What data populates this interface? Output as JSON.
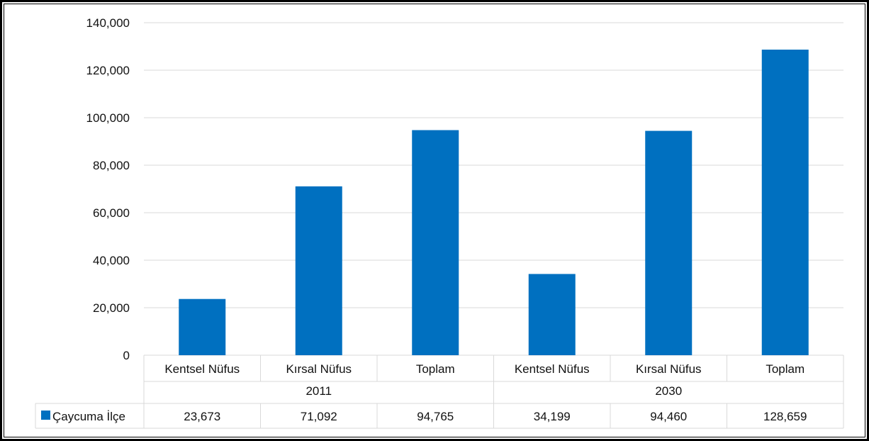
{
  "chart_data": {
    "type": "bar",
    "groups": [
      {
        "label": "2011",
        "categories": [
          "Kentsel Nüfus",
          "Kırsal Nüfus",
          "Toplam"
        ]
      },
      {
        "label": "2030",
        "categories": [
          "Kentsel Nüfus",
          "Kırsal Nüfus",
          "Toplam"
        ]
      }
    ],
    "series": [
      {
        "name": "Çaycuma İlçe",
        "color": "#0070c0",
        "values": [
          23673,
          71092,
          94765,
          34199,
          94460,
          128659
        ],
        "value_labels": [
          "23,673",
          "71,092",
          "94,765",
          "34,199",
          "94,460",
          "128,659"
        ]
      }
    ],
    "yticks": [
      "0",
      "20,000",
      "40,000",
      "60,000",
      "80,000",
      "100,000",
      "120,000",
      "140,000"
    ],
    "ylim": [
      0,
      140000
    ],
    "grid": true,
    "data_table": true,
    "title": "",
    "xlabel": "",
    "ylabel": ""
  }
}
